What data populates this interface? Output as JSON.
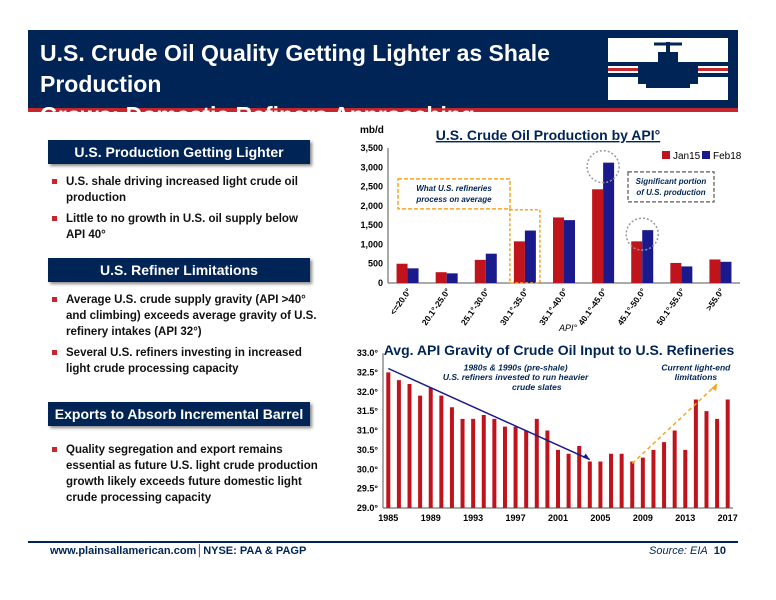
{
  "header": {
    "title_line1": "U.S. Crude Oil Quality Getting Lighter as Shale Production",
    "title_line2": "Grows; Domestic Refiners Approaching Limitations"
  },
  "sections": [
    {
      "heading": "U.S. Production Getting Lighter",
      "bullets": [
        "U.S. shale driving increased light crude oil production",
        "Little to no growth in U.S. oil supply below API 40°"
      ]
    },
    {
      "heading": "U.S. Refiner Limitations",
      "bullets": [
        "Average U.S. crude supply gravity (API >40° and climbing) exceeds average gravity of U.S. refinery intakes (API 32°)",
        "Several U.S. refiners investing in increased light crude processing capacity"
      ]
    },
    {
      "heading": "Exports to Absorb Incremental Barrel",
      "bullets": [
        "Quality segregation and export remains essential as future U.S. light crude production growth likely exceeds future domestic light crude processing capacity"
      ]
    }
  ],
  "footer": {
    "left": "www.plainsallamerican.com│NYSE: PAA & PAGP",
    "source": "Source: EIA",
    "page": "10"
  },
  "colors": {
    "navy": "#002456",
    "red": "#c6262e",
    "series1": "#c0141c",
    "series2": "#1a1a8c"
  },
  "chart_data": [
    {
      "type": "bar",
      "title": "U.S. Crude Oil Production by API°",
      "ylabel": "mb/d",
      "xlabel": "API°",
      "ylim": [
        0,
        3500
      ],
      "yticks": [
        "0",
        "500",
        "1,000",
        "1,500",
        "2,000",
        "2,500",
        "3,000",
        "3,500"
      ],
      "categories": [
        "<=20.0°",
        "20.1°-25.0°",
        "25.1°-30.0°",
        "30.1°-35.0°",
        "35.1°-40.0°",
        "40.1°-45.0°",
        "45.1°-50.0°",
        "50.1°-55.0°",
        ">55.0°"
      ],
      "series": [
        {
          "name": "Jan15",
          "values": [
            500,
            280,
            600,
            1080,
            1700,
            2430,
            1080,
            520,
            610
          ]
        },
        {
          "name": "Feb18",
          "values": [
            380,
            250,
            760,
            1360,
            1630,
            3120,
            1370,
            430,
            550
          ]
        }
      ],
      "legend": "top-right",
      "annotations": [
        "What U.S. refineries process on average",
        "Significant portion of U.S. production"
      ]
    },
    {
      "type": "bar",
      "title": "Avg. API Gravity of Crude Oil Input to U.S. Refineries",
      "ylim": [
        29.0,
        33.0
      ],
      "yticks": [
        "29.0°",
        "29.5°",
        "30.0°",
        "30.5°",
        "31.0°",
        "31.5°",
        "32.0°",
        "32.5°",
        "33.0°"
      ],
      "xticks": [
        "1985",
        "1989",
        "1993",
        "1997",
        "2001",
        "2005",
        "2009",
        "2013",
        "2017"
      ],
      "x": [
        1985,
        1986,
        1987,
        1988,
        1989,
        1990,
        1991,
        1992,
        1993,
        1994,
        1995,
        1996,
        1997,
        1998,
        1999,
        2000,
        2001,
        2002,
        2003,
        2004,
        2005,
        2006,
        2007,
        2008,
        2009,
        2010,
        2011,
        2012,
        2013,
        2014,
        2015,
        2016,
        2017
      ],
      "values": [
        32.5,
        32.3,
        32.2,
        31.9,
        32.1,
        31.9,
        31.6,
        31.3,
        31.3,
        31.4,
        31.3,
        31.1,
        31.1,
        31.0,
        31.3,
        31.0,
        30.5,
        30.4,
        30.6,
        30.2,
        30.2,
        30.4,
        30.4,
        30.2,
        30.3,
        30.5,
        30.7,
        31.0,
        30.5,
        31.8,
        31.5,
        31.3,
        31.8
      ],
      "annotations": [
        "1980s & 1990s (pre-shale) U.S. refiners invested to run heavier crude slates",
        "Current light-end limitations"
      ]
    }
  ]
}
